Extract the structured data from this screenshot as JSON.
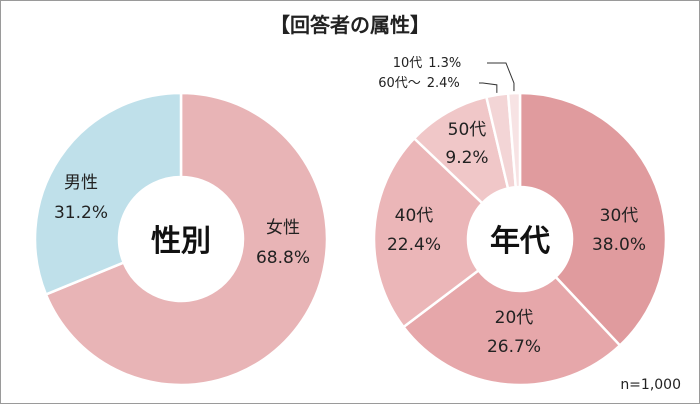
{
  "title": "【回答者の属性】",
  "sample_size": "n=1,000",
  "chart_data": [
    {
      "type": "pie",
      "center_label": "性別",
      "start_angle_deg": 0,
      "direction": "clockwise",
      "slices": [
        {
          "name": "女性",
          "value": 68.8,
          "label": "68.8%",
          "color": "#e8b4b6"
        },
        {
          "name": "男性",
          "value": 31.2,
          "label": "31.2%",
          "color": "#bfe0ea"
        }
      ]
    },
    {
      "type": "pie",
      "center_label": "年代",
      "start_angle_deg": 0,
      "direction": "clockwise",
      "slices": [
        {
          "name": "30代",
          "value": 38.0,
          "label": "38.0%",
          "color": "#e09b9e"
        },
        {
          "name": "20代",
          "value": 26.7,
          "label": "26.7%",
          "color": "#e6a7aa"
        },
        {
          "name": "40代",
          "value": 22.4,
          "label": "22.4%",
          "color": "#ebb6b8"
        },
        {
          "name": "50代",
          "value": 9.2,
          "label": "9.2%",
          "color": "#f0c7c8"
        },
        {
          "name": "60代～",
          "value": 2.4,
          "label": "2.4%",
          "color": "#f3d5d6"
        },
        {
          "name": "10代",
          "value": 1.3,
          "label": "1.3%",
          "color": "#f7e3e4"
        }
      ]
    }
  ]
}
